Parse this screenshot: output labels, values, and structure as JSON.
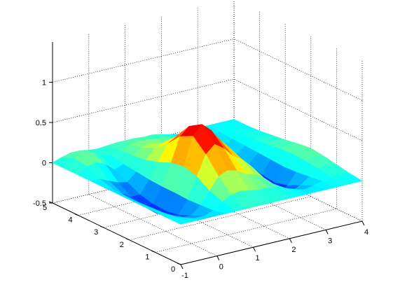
{
  "figure": {
    "background": "#ffffff",
    "colormap": "jet"
  },
  "chart_data": {
    "type": "surface",
    "title": "",
    "xlabel": "",
    "ylabel": "",
    "zlabel": "",
    "xlim": [
      -1,
      4
    ],
    "ylim": [
      0,
      5
    ],
    "zlim": [
      -0.5,
      1.5
    ],
    "clim": [
      -0.45,
      0.75
    ],
    "x_ticks": [
      -1,
      0,
      1,
      2,
      3,
      4
    ],
    "y_ticks": [
      0,
      1,
      2,
      3,
      4,
      5
    ],
    "z_ticks": [
      -0.5,
      0,
      0.5,
      1
    ],
    "x_tick_labels": [
      "-1",
      "0",
      "1",
      "2",
      "3",
      "4"
    ],
    "y_tick_labels": [
      "0",
      "1",
      "2",
      "3",
      "4",
      "5"
    ],
    "z_tick_labels": [
      "-0.5",
      "0",
      "0.5",
      "1"
    ],
    "grid": true,
    "shading": "interp",
    "surface_extent": {
      "x": [
        -1,
        4
      ],
      "y": [
        0,
        5
      ]
    },
    "z_values": [
      [
        0.0,
        0.0,
        0.0,
        0.0,
        0.0,
        0.0,
        0.0,
        0.0,
        0.0,
        0.0,
        0.0,
        0.0,
        0.0,
        0.0,
        0.0,
        0.0,
        0.0,
        0.0,
        0.0,
        0.0,
        0.0
      ],
      [
        0.0,
        -0.02,
        -0.05,
        -0.08,
        -0.08,
        -0.04,
        0.04,
        0.1,
        0.12,
        0.1,
        0.08,
        0.08,
        0.06,
        0.02,
        -0.02,
        -0.05,
        -0.03,
        0.0,
        0.02,
        0.03,
        0.02
      ],
      [
        0.0,
        -0.04,
        -0.1,
        -0.15,
        -0.15,
        -0.05,
        0.1,
        0.25,
        0.3,
        0.27,
        0.2,
        0.17,
        0.1,
        0.0,
        -0.1,
        -0.15,
        -0.1,
        -0.02,
        0.05,
        0.07,
        0.05
      ],
      [
        0.0,
        -0.05,
        -0.14,
        -0.22,
        -0.22,
        -0.06,
        0.2,
        0.45,
        0.55,
        0.47,
        0.35,
        0.28,
        0.17,
        0.0,
        -0.18,
        -0.26,
        -0.18,
        -0.04,
        0.07,
        0.1,
        0.08
      ],
      [
        0.0,
        -0.06,
        -0.16,
        -0.25,
        -0.25,
        -0.05,
        0.25,
        0.6,
        0.72,
        0.62,
        0.47,
        0.35,
        0.2,
        0.0,
        -0.23,
        -0.32,
        -0.22,
        -0.05,
        0.08,
        0.12,
        0.1
      ],
      [
        0.0,
        -0.06,
        -0.16,
        -0.24,
        -0.24,
        -0.05,
        0.22,
        0.52,
        0.62,
        0.55,
        0.42,
        0.33,
        0.18,
        0.0,
        -0.22,
        -0.3,
        -0.2,
        -0.04,
        0.07,
        0.1,
        0.08
      ],
      [
        0.0,
        -0.05,
        -0.13,
        -0.2,
        -0.2,
        -0.04,
        0.15,
        0.35,
        0.42,
        0.38,
        0.3,
        0.25,
        0.15,
        0.0,
        -0.17,
        -0.23,
        -0.15,
        -0.03,
        0.05,
        0.07,
        0.05
      ],
      [
        0.0,
        0.0,
        -0.05,
        -0.1,
        -0.12,
        -0.02,
        0.1,
        0.22,
        0.26,
        0.24,
        0.2,
        0.18,
        0.12,
        0.0,
        -0.12,
        -0.15,
        -0.1,
        -0.02,
        0.03,
        0.04,
        0.03
      ],
      [
        0.0,
        0.08,
        0.1,
        0.05,
        -0.04,
        0.0,
        0.08,
        0.15,
        0.18,
        0.16,
        0.14,
        0.13,
        0.09,
        0.0,
        -0.08,
        -0.1,
        -0.06,
        -0.01,
        0.02,
        0.02,
        0.01
      ],
      [
        0.0,
        0.1,
        0.16,
        0.12,
        0.05,
        0.03,
        0.07,
        0.11,
        0.12,
        0.12,
        0.1,
        0.09,
        0.06,
        0.0,
        -0.05,
        -0.06,
        -0.04,
        0.0,
        0.01,
        0.01,
        0.0
      ],
      [
        0.0,
        0.04,
        0.07,
        0.07,
        0.05,
        0.04,
        0.05,
        0.06,
        0.06,
        0.06,
        0.05,
        0.05,
        0.03,
        0.0,
        -0.02,
        -0.03,
        -0.02,
        0.0,
        0.0,
        0.0,
        0.0
      ]
    ]
  }
}
